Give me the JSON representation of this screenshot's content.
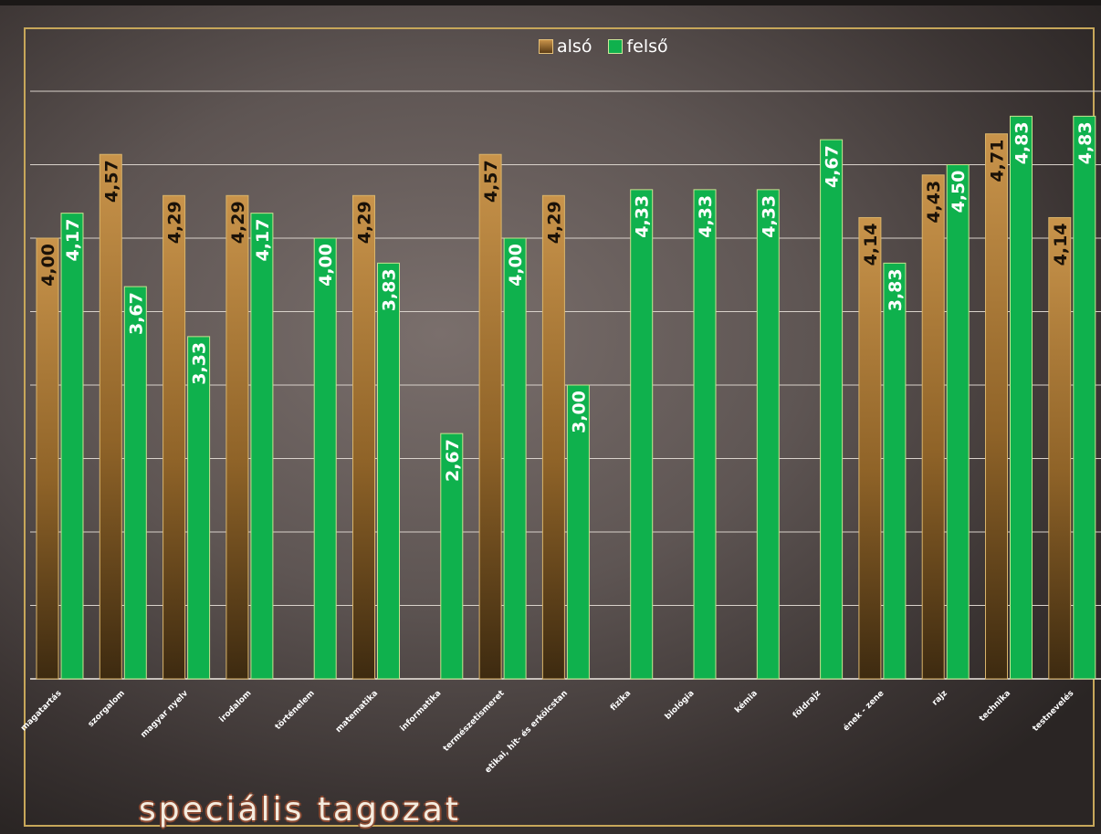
{
  "chart_data": {
    "type": "bar",
    "title": "speciális tagozat",
    "categories": [
      "magatartás",
      "szorgalom",
      "magyar nyelv",
      "irodalom",
      "történelem",
      "matematika",
      "informatika",
      "természetismeret",
      "etikai, hit- és erkölcstan",
      "fizika",
      "biológia",
      "kémia",
      "földrajz",
      "ének - zene",
      "rajz",
      "technika",
      "testnevelés"
    ],
    "series": [
      {
        "name": "alsó",
        "color": "#a97a33",
        "values": [
          4.0,
          4.57,
          4.29,
          4.29,
          null,
          4.29,
          null,
          4.57,
          4.29,
          null,
          null,
          null,
          null,
          4.14,
          4.43,
          4.71,
          4.14
        ],
        "labels": [
          "4,00",
          "4,57",
          "4,29",
          "4,29",
          "",
          "4,29",
          "",
          "4,57",
          "4,29",
          "",
          "",
          "",
          "",
          "4,14",
          "4,43",
          "4,71",
          "4,14"
        ]
      },
      {
        "name": "felső",
        "color": "#0fb14d",
        "values": [
          4.17,
          3.67,
          3.33,
          4.17,
          4.0,
          3.83,
          2.67,
          4.0,
          3.0,
          4.33,
          4.33,
          4.33,
          4.67,
          3.83,
          4.5,
          4.83,
          4.83
        ],
        "labels": [
          "4,17",
          "3,67",
          "3,33",
          "4,17",
          "4,00",
          "3,83",
          "2,67",
          "4,00",
          "3,00",
          "4,33",
          "4,33",
          "4,33",
          "4,67",
          "3,83",
          "4,50",
          "4,83",
          "4,83"
        ]
      }
    ],
    "ylim": [
      1,
      5
    ],
    "grid": true,
    "legend_position": "top-center"
  }
}
